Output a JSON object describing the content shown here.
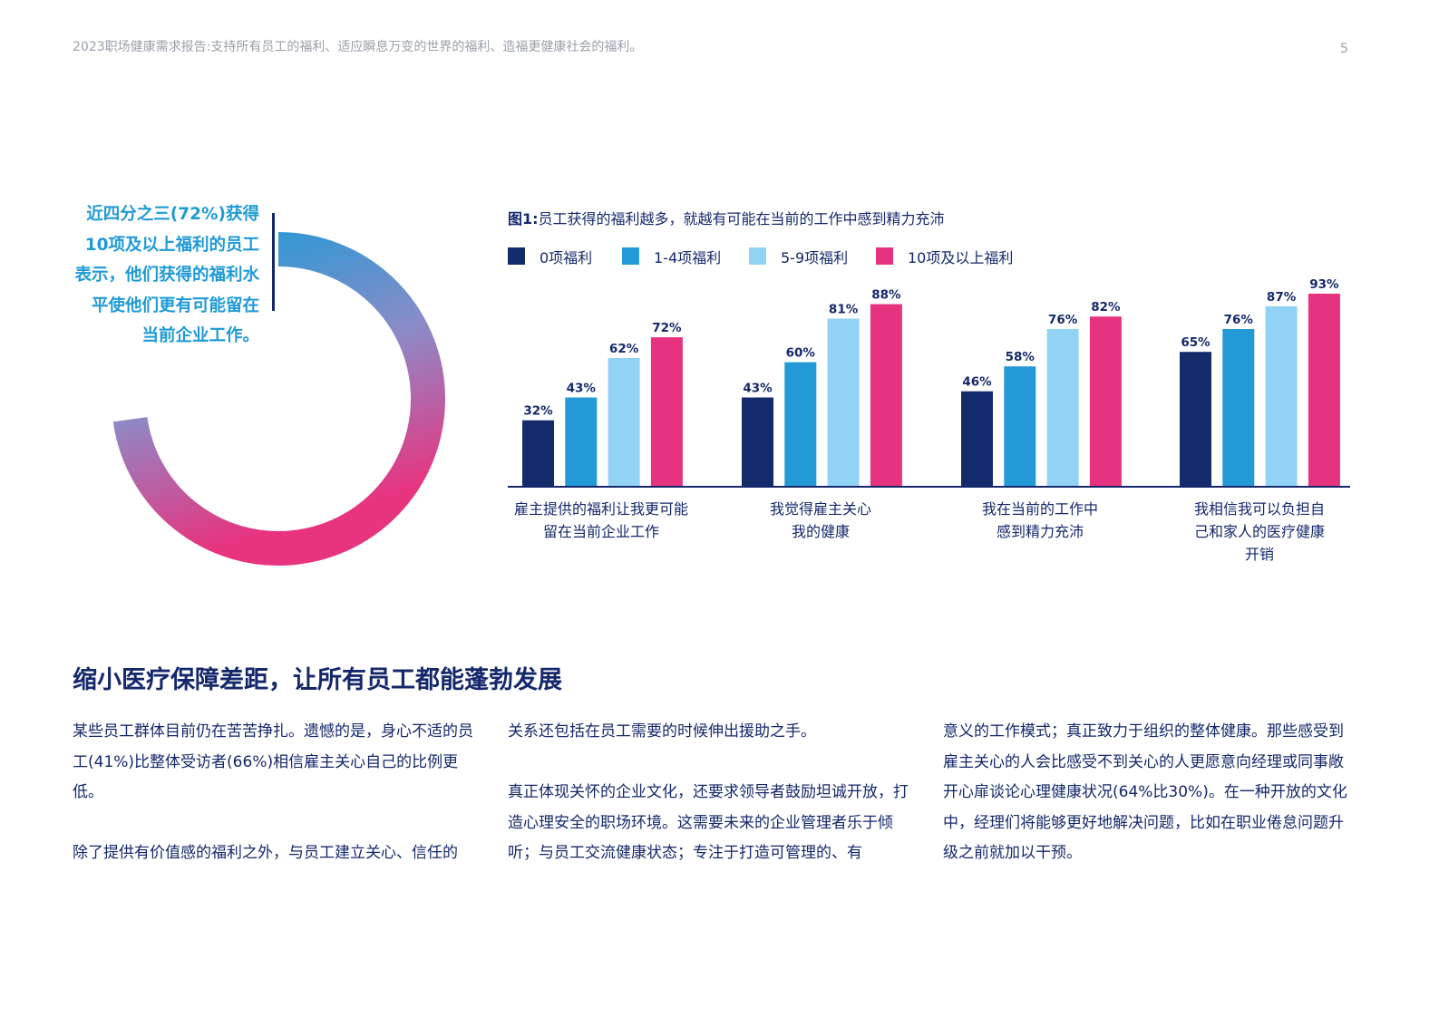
{
  "header": {
    "text": "2023职场健康需求报告:支持所有员工的福利、适应瞬息万变的世界的福利、造福更健康社会的福利。",
    "page_number": "5"
  },
  "callout": {
    "lines": [
      "近四分之三(72%)获得",
      "10项及以上福利的员工",
      "表示，他们获得的福利水",
      "平使他们更有可能留在",
      "当前企业工作。"
    ],
    "ring_value_percent": 72,
    "ring_colors": [
      "#1f9ad6",
      "#8b8cc8",
      "#e8337f"
    ]
  },
  "figure": {
    "title_prefix": "图1:",
    "title_text": "员工获得的福利越多，就越有可能在当前的工作中感到精力充沛"
  },
  "chart_data": {
    "type": "bar",
    "title": "图1:员工获得的福利越多，就越有可能在当前的工作中感到精力充沛",
    "legend_position": "top-left",
    "ylim": [
      0,
      100
    ],
    "grid": false,
    "categories": [
      [
        "雇主提供的福利让我更可能",
        "留在当前企业工作"
      ],
      [
        "我觉得雇主关心",
        "我的健康"
      ],
      [
        "我在当前的工作中",
        "感到精力充沛"
      ],
      [
        "我相信我可以负担自",
        "己和家人的医疗健康",
        "开销"
      ]
    ],
    "series": [
      {
        "name": "0项福利",
        "color": "#132a6b",
        "values": [
          32,
          43,
          46,
          65
        ]
      },
      {
        "name": "1-4项福利",
        "color": "#2399d6",
        "values": [
          43,
          60,
          58,
          76
        ]
      },
      {
        "name": "5-9项福利",
        "color": "#92d2f4",
        "values": [
          62,
          81,
          76,
          87
        ]
      },
      {
        "name": "10项及以上福利",
        "color": "#e6337f",
        "values": [
          72,
          88,
          82,
          93
        ]
      }
    ],
    "value_suffix": "%"
  },
  "section": {
    "title": "缩小医疗保障差距，让所有员工都能蓬勃发展",
    "columns": [
      [
        "某些员工群体目前仍在苦苦挣扎。遗憾的是，身心不适的员工(41%)比整体受访者(66%)相信雇主关心自己的比例更低。",
        "除了提供有价值感的福利之外，与员工建立关心、信任的"
      ],
      [
        "关系还包括在员工需要的时候伸出援助之手。",
        "真正体现关怀的企业文化，还要求领导者鼓励坦诚开放，打造心理安全的职场环境。这需要未来的企业管理者乐于倾听；与员工交流健康状态；专注于打造可管理的、有"
      ],
      [
        "意义的工作模式；真正致力于组织的整体健康。那些感受到雇主关心的人会比感受不到关心的人更愿意向经理或同事敞开心扉谈论心理健康状况(64%比30%)。在一种开放的文化中，经理们将能够更好地解决问题，比如在职业倦怠问题升级之前就加以干预。"
      ]
    ]
  }
}
